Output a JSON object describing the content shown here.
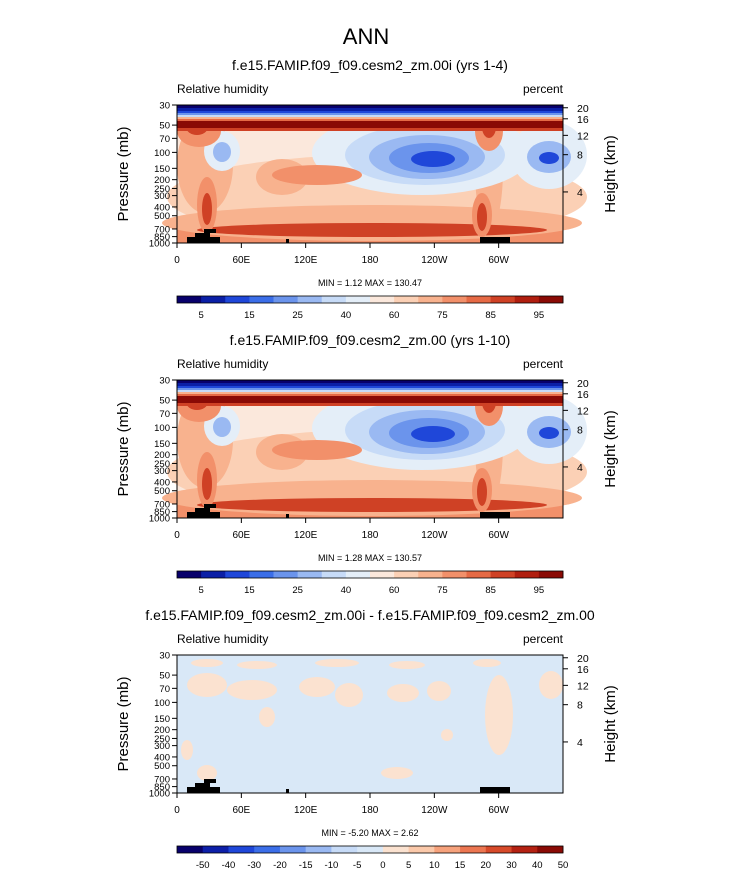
{
  "page_title": "ANN",
  "chart_data": [
    {
      "type": "heatmap",
      "title": "f.e15.FAMIP.f09_f09.cesm2_zm.00i (yrs 1-4)",
      "left_subtitle": "Relative humidity",
      "right_subtitle": "percent",
      "ylabel": "Pressure (mb)",
      "y2label": "Height (km)",
      "x_ticks": [
        "0",
        "60E",
        "120E",
        "180",
        "120W",
        "60W"
      ],
      "y_ticks": [
        "30",
        "50",
        "70",
        "100",
        "150",
        "200",
        "250",
        "300",
        "400",
        "500",
        "700",
        "850",
        "1000"
      ],
      "y2_ticks": [
        "20",
        "16",
        "12",
        "8",
        "4"
      ],
      "stats": "MIN =   1.12  MAX = 130.47",
      "colorbar_labels": [
        "5",
        "15",
        "25",
        "40",
        "60",
        "75",
        "85",
        "95"
      ]
    },
    {
      "type": "heatmap",
      "title": "f.e15.FAMIP.f09_f09.cesm2_zm.00 (yrs 1-10)",
      "left_subtitle": "Relative humidity",
      "right_subtitle": "percent",
      "ylabel": "Pressure (mb)",
      "y2label": "Height (km)",
      "x_ticks": [
        "0",
        "60E",
        "120E",
        "180",
        "120W",
        "60W"
      ],
      "y_ticks": [
        "30",
        "50",
        "70",
        "100",
        "150",
        "200",
        "250",
        "300",
        "400",
        "500",
        "700",
        "850",
        "1000"
      ],
      "y2_ticks": [
        "20",
        "16",
        "12",
        "8",
        "4"
      ],
      "stats": "MIN =   1.28  MAX = 130.57",
      "colorbar_labels": [
        "5",
        "15",
        "25",
        "40",
        "60",
        "75",
        "85",
        "95"
      ]
    },
    {
      "type": "heatmap",
      "title": "f.e15.FAMIP.f09_f09.cesm2_zm.00i - f.e15.FAMIP.f09_f09.cesm2_zm.00",
      "left_subtitle": "Relative humidity",
      "right_subtitle": "percent",
      "ylabel": "Pressure (mb)",
      "y2label": "Height (km)",
      "x_ticks": [
        "0",
        "60E",
        "120E",
        "180",
        "120W",
        "60W"
      ],
      "y_ticks": [
        "30",
        "50",
        "70",
        "100",
        "150",
        "200",
        "250",
        "300",
        "400",
        "500",
        "700",
        "850",
        "1000"
      ],
      "y2_ticks": [
        "20",
        "16",
        "12",
        "8",
        "4"
      ],
      "stats": "MIN =  -5.20  MAX =   2.62",
      "colorbar_labels": [
        "-50",
        "-40",
        "-30",
        "-20",
        "-15",
        "-10",
        "-5",
        "0",
        "5",
        "10",
        "15",
        "20",
        "30",
        "40",
        "50"
      ]
    }
  ],
  "colors": {
    "abs_scale": [
      "#08006b",
      "#0b1fa6",
      "#1f47d9",
      "#3b6ee8",
      "#6b94ec",
      "#9ab9f2",
      "#c7dbf7",
      "#e4eef8",
      "#fbe8dc",
      "#fbd0b5",
      "#f8b28e",
      "#f2906a",
      "#e66a45",
      "#cf4125",
      "#b01e0f",
      "#8a0a05"
    ],
    "diff_scale": [
      "#08006b",
      "#0d1fa8",
      "#1f47d9",
      "#3b6ee8",
      "#6b94ec",
      "#9ab9f2",
      "#c7dbf7",
      "#d9e8f7",
      "#fbe2d0",
      "#fbc9aa",
      "#f6a27c",
      "#ec7651",
      "#d74a2a",
      "#b42112",
      "#8a0a05"
    ]
  }
}
